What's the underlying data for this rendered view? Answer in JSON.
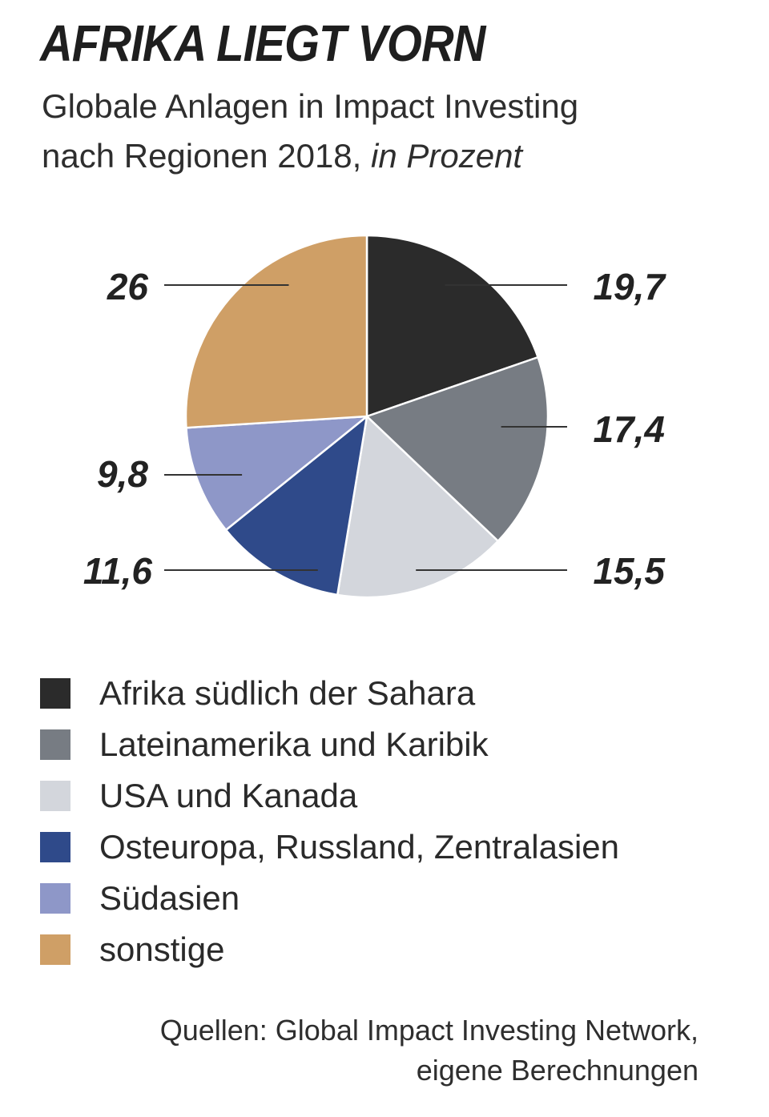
{
  "title": "AFRIKA LIEGT VORN",
  "subtitle_line1": "Globale Anlagen in Impact Investing",
  "subtitle_line2": "nach Regionen 2018,",
  "subtitle_unit": "in Prozent",
  "source_line1": "Quellen: Global Impact Investing Network,",
  "source_line2": "eigene Berechnungen",
  "chart_data": {
    "type": "pie",
    "title": "AFRIKA LIEGT VORN",
    "subtitle": "Globale Anlagen in Impact Investing nach Regionen 2018, in Prozent",
    "slices": [
      {
        "label": "Afrika südlich der Sahara",
        "value": 19.7,
        "value_label": "19,7",
        "color": "#2b2b2b"
      },
      {
        "label": "Lateinamerika und Karibik",
        "value": 17.4,
        "value_label": "17,4",
        "color": "#777c83"
      },
      {
        "label": "USA und Kanada",
        "value": 15.5,
        "value_label": "15,5",
        "color": "#d3d6dc"
      },
      {
        "label": "Osteuropa, Russland, Zentralasien",
        "value": 11.6,
        "value_label": "11,6",
        "color": "#2f4a8a"
      },
      {
        "label": "Südasien",
        "value": 9.8,
        "value_label": "9,8",
        "color": "#8e97c8"
      },
      {
        "label": "sonstige",
        "value": 26,
        "value_label": "26",
        "color": "#cf9f66"
      }
    ],
    "legend_position": "bottom"
  }
}
